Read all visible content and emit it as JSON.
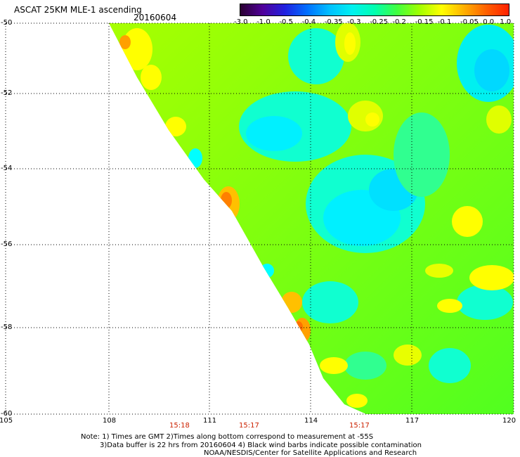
{
  "title": "ASCAT 25KM MLE-1 ascending",
  "date": "20160604",
  "colorbar": {
    "labels": [
      "-3.0",
      "-1.0",
      "-0.5",
      "-0.4",
      "-0.35",
      "-0.3",
      "-0.25",
      "-0.2",
      "-0.15",
      "-0.1",
      "-0.05",
      "0.0",
      "1.0"
    ],
    "colors": [
      "#2a0030",
      "#50009a",
      "#2020e0",
      "#0070ff",
      "#00c0ff",
      "#00f0f0",
      "#00ffb0",
      "#40ff40",
      "#a0ff00",
      "#ffff00",
      "#ffb000",
      "#ff6000",
      "#ff2000"
    ]
  },
  "lat_labels": [
    "-50",
    "-52",
    "-54",
    "-56",
    "-58",
    "-60"
  ],
  "lon_labels": [
    "105",
    "108",
    "111",
    "114",
    "117",
    "120"
  ],
  "times": [
    "15:18",
    "15:17",
    "15:17"
  ],
  "note": {
    "line1": "Note: 1) Times are GMT 2)Times along bottom correspond to measurement at -55S",
    "line2": "3)Data buffer is 22 hrs from 20160604 4) Black wind barbs indicate possible contamination",
    "line3": "NOAA/NESDIS/Center for Satellite Applications and Research"
  },
  "palette": {
    "data_cyan": "#00ffff",
    "data_green": "#44ff00",
    "data_yellow": "#ffff00",
    "data_orange": "#ff8800",
    "grid": "#000000"
  }
}
